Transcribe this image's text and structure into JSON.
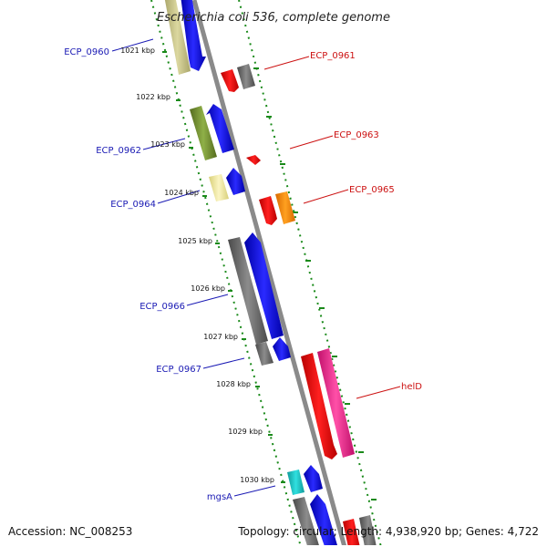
{
  "title": "Escherichia coli 536, complete genome",
  "footer": {
    "accession": "Accession: NC_008253",
    "topology": "Topology: circular; Length: 4,938,920 bp; Genes: 4,722"
  },
  "colors": {
    "backbone": "#8a8a8a",
    "tick": "#1a8a1a",
    "left_label": "#1a1ab4",
    "right_label": "#cc1111"
  },
  "scale_labels": [
    "1021 kbp",
    "1022 kbp",
    "1023 kbp",
    "1024 kbp",
    "1025 kbp",
    "1026 kbp",
    "1027 kbp",
    "1028 kbp",
    "1029 kbp",
    "1030 kbp"
  ],
  "gene_labels_left": [
    "ECP_0960",
    "ECP_0962",
    "ECP_0964",
    "ECP_0966",
    "ECP_0967",
    "mgsA"
  ],
  "gene_labels_right": [
    "ECP_0961",
    "ECP_0963",
    "ECP_0965",
    "helD"
  ]
}
